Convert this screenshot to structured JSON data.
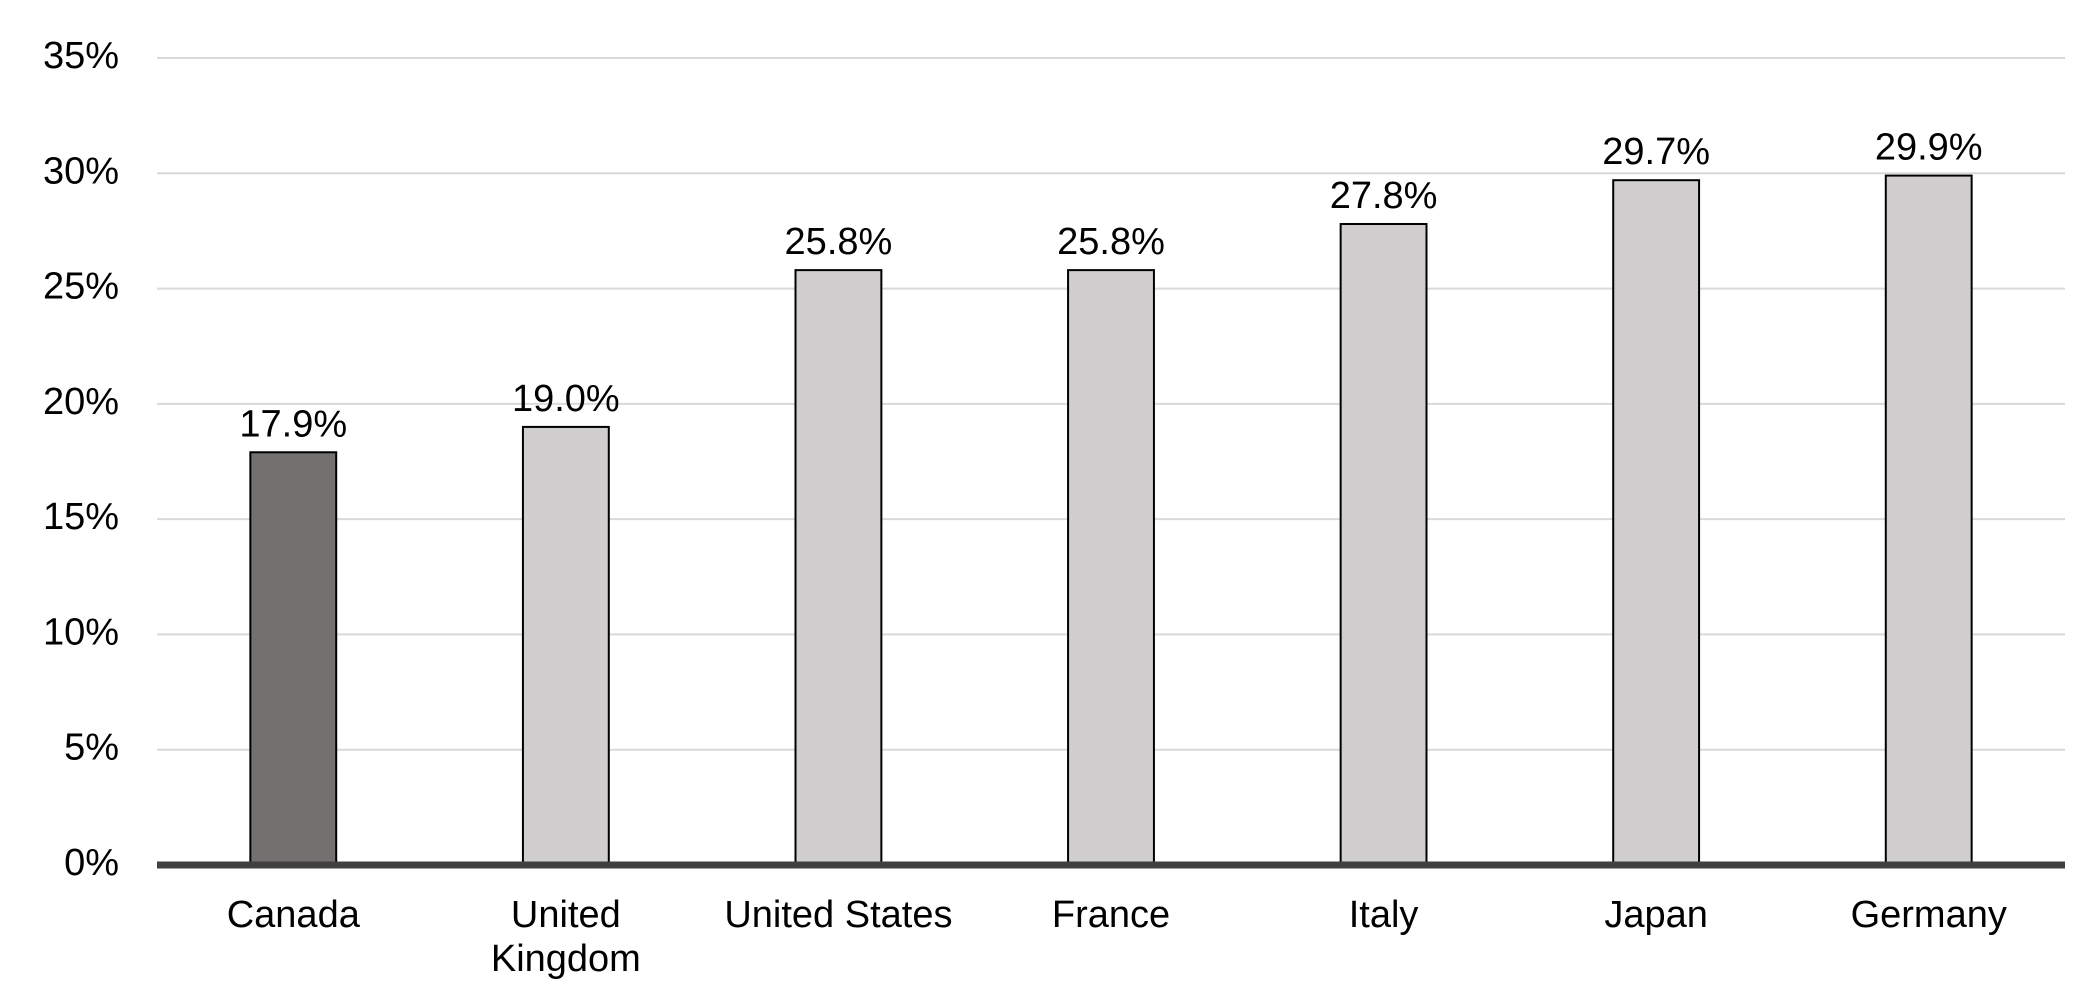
{
  "chart_data": {
    "type": "bar",
    "categories": [
      "Canada",
      "United Kingdom",
      "United States",
      "France",
      "Italy",
      "Japan",
      "Germany"
    ],
    "values": [
      17.9,
      19.0,
      25.8,
      25.8,
      27.8,
      29.7,
      29.9
    ],
    "value_labels": [
      "17.9%",
      "19.0%",
      "25.8%",
      "25.8%",
      "27.8%",
      "29.7%",
      "29.9%"
    ],
    "colors": [
      "#747070",
      "#d0cecf",
      "#d0cecf",
      "#d0cecf",
      "#d0cecf",
      "#d0cecf",
      "#d0cecf"
    ],
    "ylim": [
      0,
      35
    ],
    "yticks": [
      {
        "value": 0,
        "label": "0%"
      },
      {
        "value": 5,
        "label": "5%"
      },
      {
        "value": 10,
        "label": "10%"
      },
      {
        "value": 15,
        "label": "15%"
      },
      {
        "value": 20,
        "label": "20%"
      },
      {
        "value": 25,
        "label": "25%"
      },
      {
        "value": 30,
        "label": "30%"
      },
      {
        "value": 35,
        "label": "35%"
      }
    ],
    "grid": true
  }
}
